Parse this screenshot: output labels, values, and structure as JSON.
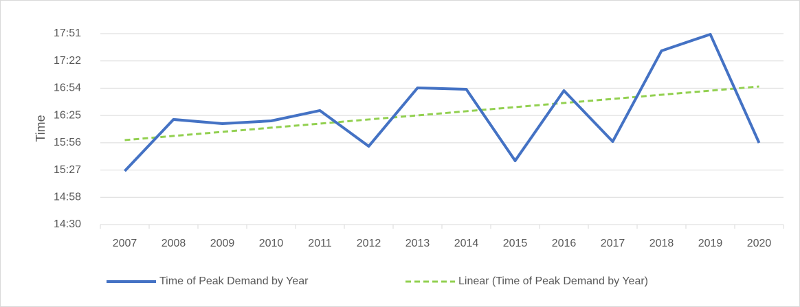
{
  "chart_data": {
    "type": "line",
    "y_label": "Time",
    "categories": [
      "2007",
      "2008",
      "2009",
      "2010",
      "2011",
      "2012",
      "2013",
      "2014",
      "2015",
      "2016",
      "2017",
      "2018",
      "2019",
      "2020"
    ],
    "series": [
      {
        "name": "Time of Peak Demand by Year",
        "color": "#4472c4",
        "dashed": false,
        "values": [
          926.6,
          981,
          976.6,
          979.5,
          990.4,
          952.7,
          1014.3,
          1012.9,
          937.4,
          1011.4,
          957.7,
          1053.5,
          1070.9,
          956.3
        ]
      },
      {
        "name": "Linear (Time of Peak Demand by Year)",
        "color": "#92d050",
        "dashed": true,
        "values": [
          959.2,
          963.6,
          967.9,
          972.3,
          976.6,
          981.0,
          985.3,
          989.7,
          994.0,
          998.4,
          1002.7,
          1007.1,
          1011.4,
          1015.8
        ]
      }
    ],
    "ylim": [
      870,
      1071.6
    ],
    "yticks": [
      {
        "value": 870,
        "label": "14:30"
      },
      {
        "value": 898.8,
        "label": "14:58"
      },
      {
        "value": 927.6,
        "label": "15:27"
      },
      {
        "value": 956.4,
        "label": "15:56"
      },
      {
        "value": 985.2,
        "label": "16:25"
      },
      {
        "value": 1014,
        "label": "16:54"
      },
      {
        "value": 1042.8,
        "label": "17:22"
      },
      {
        "value": 1071.6,
        "label": "17:51"
      }
    ],
    "grid": true,
    "legend": "bottom"
  }
}
